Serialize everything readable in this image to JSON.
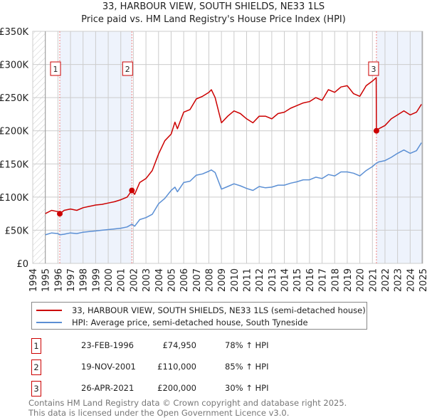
{
  "title": "33, HARBOUR VIEW, SOUTH SHIELDS, NE33 1LS",
  "subtitle": "Price paid vs. HM Land Registry's House Price Index (HPI)",
  "colors": {
    "property": "#cc0000",
    "hpi": "#5b8fd4",
    "shade": "#eef3fc",
    "grid": "#cccccc"
  },
  "chart_data": {
    "type": "line",
    "title": "33, HARBOUR VIEW, SOUTH SHIELDS, NE33 1LS",
    "xlim": [
      1994,
      2025
    ],
    "ylim": [
      0,
      350000
    ],
    "grid": true,
    "y_ticks": [
      0,
      50000,
      100000,
      150000,
      200000,
      250000,
      300000,
      350000
    ],
    "y_tick_labels": [
      "£0",
      "£50K",
      "£100K",
      "£150K",
      "£200K",
      "£250K",
      "£300K",
      "£350K"
    ],
    "x_ticks": [
      "1994",
      "1995",
      "1996",
      "1997",
      "1998",
      "1999",
      "2000",
      "2001",
      "2002",
      "2003",
      "2004",
      "2005",
      "2006",
      "2007",
      "2008",
      "2009",
      "2010",
      "2011",
      "2012",
      "2013",
      "2014",
      "2015",
      "2016",
      "2017",
      "2018",
      "2019",
      "2020",
      "2021",
      "2022",
      "2023",
      "2024",
      "2025"
    ],
    "series": [
      {
        "name": "33, HARBOUR VIEW, SOUTH SHIELDS, NE33 1LS (semi-detached house)",
        "x": [
          1995,
          1995.5,
          1996,
          1996.15,
          1996.5,
          1997,
          1997.5,
          1998,
          1998.5,
          1999,
          1999.5,
          2000,
          2000.5,
          2001,
          2001.5,
          2001.88,
          2002.1,
          2002.5,
          2003,
          2003.5,
          2004,
          2004.5,
          2005,
          2005.3,
          2005.5,
          2006,
          2006.5,
          2007,
          2007.5,
          2008,
          2008.2,
          2008.5,
          2009,
          2009.5,
          2010,
          2010.5,
          2011,
          2011.5,
          2012,
          2012.5,
          2013,
          2013.5,
          2014,
          2014.5,
          2015,
          2015.5,
          2016,
          2016.5,
          2017,
          2017.5,
          2018,
          2018.5,
          2019,
          2019.5,
          2020,
          2020.5,
          2021,
          2021.3,
          2021.32,
          2021.5,
          2022,
          2022.5,
          2023,
          2023.5,
          2024,
          2024.5,
          2024.9
        ],
        "y": [
          75000,
          80000,
          78000,
          74950,
          80000,
          82000,
          80000,
          84000,
          86000,
          88000,
          89000,
          91000,
          93000,
          96000,
          100000,
          110000,
          104000,
          122000,
          128000,
          140000,
          165000,
          185000,
          195000,
          213000,
          203000,
          228000,
          232000,
          248000,
          252000,
          258000,
          262000,
          250000,
          212000,
          222000,
          230000,
          226000,
          218000,
          212000,
          222000,
          222000,
          218000,
          226000,
          228000,
          234000,
          238000,
          242000,
          244000,
          250000,
          246000,
          262000,
          258000,
          266000,
          268000,
          256000,
          252000,
          268000,
          275000,
          280000,
          200000,
          203000,
          208000,
          218000,
          224000,
          230000,
          224000,
          228000,
          240000
        ]
      },
      {
        "name": "HPI: Average price, semi-detached house, South Tyneside",
        "x": [
          1995,
          1995.5,
          1996,
          1996.15,
          1996.5,
          1997,
          1997.5,
          1998,
          1998.5,
          1999,
          1999.5,
          2000,
          2000.5,
          2001,
          2001.5,
          2001.88,
          2002.1,
          2002.5,
          2003,
          2003.5,
          2004,
          2004.5,
          2005,
          2005.3,
          2005.5,
          2006,
          2006.5,
          2007,
          2007.5,
          2008,
          2008.2,
          2008.5,
          2009,
          2009.5,
          2010,
          2010.5,
          2011,
          2011.5,
          2012,
          2012.5,
          2013,
          2013.5,
          2014,
          2014.5,
          2015,
          2015.5,
          2016,
          2016.5,
          2017,
          2017.5,
          2018,
          2018.5,
          2019,
          2019.5,
          2020,
          2020.5,
          2021,
          2021.3,
          2021.32,
          2021.5,
          2022,
          2022.5,
          2023,
          2023.5,
          2024,
          2024.5,
          2024.9
        ],
        "y": [
          43000,
          46000,
          45000,
          43000,
          44000,
          46000,
          45000,
          47000,
          48000,
          49000,
          50000,
          51000,
          52000,
          53000,
          55000,
          59000,
          56000,
          66000,
          69000,
          74000,
          90000,
          98000,
          110000,
          115000,
          108000,
          122000,
          124000,
          133000,
          135000,
          139000,
          141000,
          137000,
          112000,
          116000,
          120000,
          117000,
          113000,
          110000,
          116000,
          114000,
          115000,
          118000,
          118000,
          121000,
          123000,
          126000,
          126000,
          130000,
          128000,
          134000,
          132000,
          138000,
          138000,
          136000,
          132000,
          140000,
          146000,
          151000,
          151000,
          153000,
          155000,
          160000,
          166000,
          171000,
          166000,
          170000,
          182000
        ]
      }
    ],
    "sales": [
      {
        "label": "1",
        "x": 1996.15,
        "y": 74950
      },
      {
        "label": "2",
        "x": 2001.88,
        "y": 110000
      },
      {
        "label": "3",
        "x": 2021.32,
        "y": 200000
      }
    ]
  },
  "legend": {
    "property": "33, HARBOUR VIEW, SOUTH SHIELDS, NE33 1LS (semi-detached house)",
    "hpi": "HPI: Average price, semi-detached house, South Tyneside"
  },
  "sales_table": [
    {
      "num": "1",
      "date": "23-FEB-1996",
      "price": "£74,950",
      "hpi": "78% ↑ HPI"
    },
    {
      "num": "2",
      "date": "19-NOV-2001",
      "price": "£110,000",
      "hpi": "85% ↑ HPI"
    },
    {
      "num": "3",
      "date": "26-APR-2021",
      "price": "£200,000",
      "hpi": "30% ↑ HPI"
    }
  ],
  "footer": {
    "line1": "Contains HM Land Registry data © Crown copyright and database right 2025.",
    "line2": "This data is licensed under the Open Government Licence v3.0."
  }
}
